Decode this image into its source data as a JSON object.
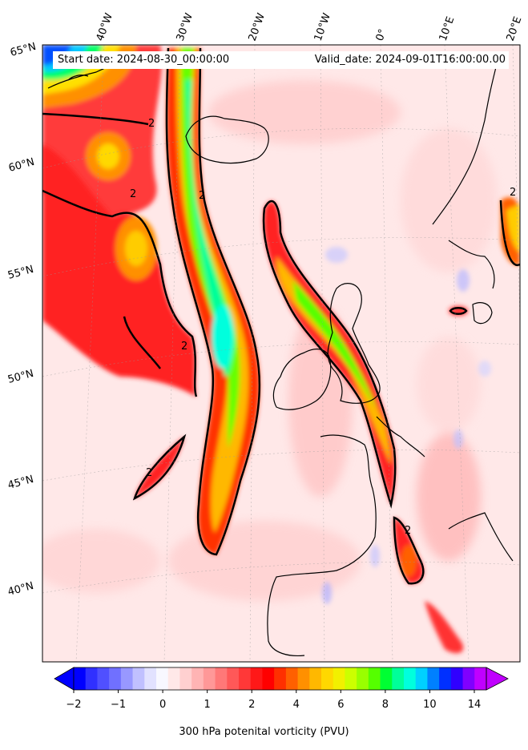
{
  "header": {
    "start_date": "Start date: 2024-08-30_00:00:00",
    "valid_date": "Valid_date: 2024-09-01T16:00:00.00"
  },
  "map": {
    "lon_labels": [
      "40°W",
      "30°W",
      "20°W",
      "10°W",
      "0°",
      "10°E",
      "20°E"
    ],
    "lat_labels": [
      "65°N",
      "60°N",
      "55°N",
      "50°N",
      "45°N",
      "40°N"
    ],
    "contour_label": "2"
  },
  "colorbar": {
    "title": "300 hPa potenital vorticity (PVU)",
    "tick_labels": [
      "−2",
      "−1",
      "0",
      "1",
      "2",
      "4",
      "6",
      "8",
      "10",
      "14"
    ],
    "colors": [
      "#0000ff",
      "#3030ff",
      "#5050ff",
      "#7070ff",
      "#9898ff",
      "#c0c0ff",
      "#e2e2ff",
      "#f8f8ff",
      "#ffe8e8",
      "#ffd0d0",
      "#ffb4b4",
      "#ff9898",
      "#ff7878",
      "#ff5858",
      "#ff3838",
      "#ff1818",
      "#ff0000",
      "#ff3000",
      "#ff6000",
      "#ff9000",
      "#ffb800",
      "#ffd800",
      "#f2f000",
      "#ccff00",
      "#99ff00",
      "#55ff00",
      "#00ff33",
      "#00ff99",
      "#00ffdd",
      "#00d0ff",
      "#0080ff",
      "#0030ff",
      "#3000ff",
      "#8000ff",
      "#c000ff"
    ]
  }
}
